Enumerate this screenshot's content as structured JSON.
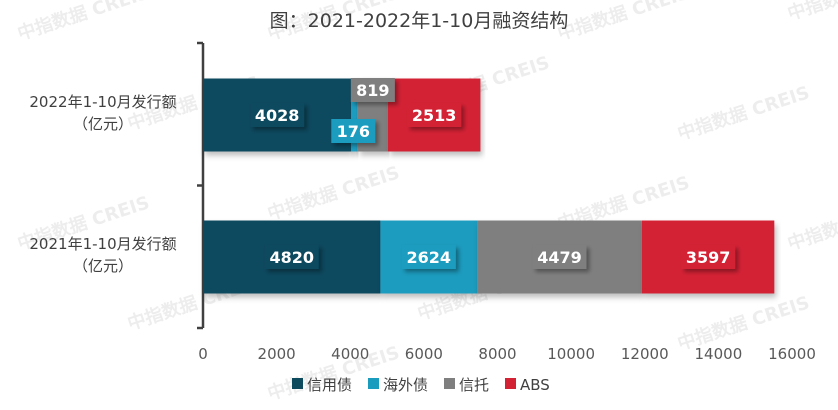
{
  "chart_data": {
    "type": "bar",
    "orientation": "horizontal",
    "stacked": true,
    "title": "图：2021-2022年1-10月融资结构",
    "categories": [
      "2022年1-10月发行额\n（亿元）",
      "2021年1-10月发行额\n（亿元）"
    ],
    "series": [
      {
        "name": "信用债",
        "color": "#0d4a5e",
        "values": [
          4028,
          4820
        ]
      },
      {
        "name": "海外债",
        "color": "#1a9cbf",
        "values": [
          176,
          2624
        ]
      },
      {
        "name": "信托",
        "color": "#7f7f7f",
        "values": [
          819,
          4479
        ]
      },
      {
        "name": "ABS",
        "color": "#d42235",
        "values": [
          2513,
          3597
        ]
      }
    ],
    "xlim": [
      0,
      16000
    ],
    "xticks": [
      0,
      2000,
      4000,
      6000,
      8000,
      10000,
      12000,
      14000,
      16000
    ],
    "grid": false,
    "legend_position": "bottom"
  },
  "watermark": "中指数据 CREIS"
}
